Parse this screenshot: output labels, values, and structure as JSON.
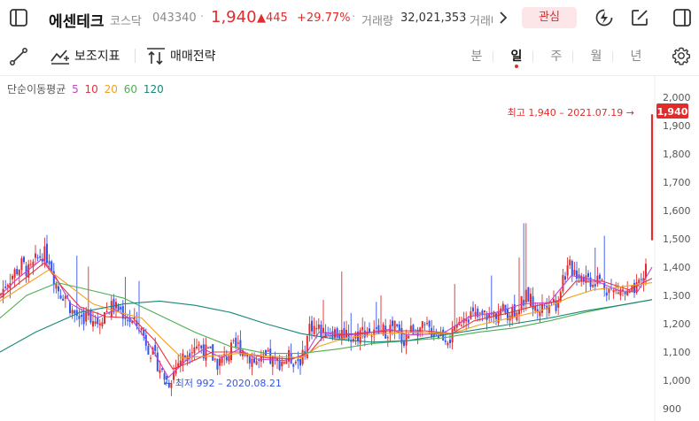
{
  "header": {
    "name": "에센테크",
    "market": "코스닥",
    "code": "043340",
    "price": "1,940",
    "change": "▲445",
    "change_pct": "+29.77%",
    "volume_label": "거래량",
    "volume": "32,021,353",
    "volume_label2": "거래대금",
    "favorite_label": "관심"
  },
  "toolbar": {
    "indicators_label": "보조지표",
    "trade_strategy_label": "매매전략",
    "periods": [
      "분",
      "일",
      "주",
      "월",
      "년"
    ],
    "active_period": "일"
  },
  "legend": {
    "title": "단순이동평균",
    "items": [
      {
        "label": "5",
        "color": "#c244c8"
      },
      {
        "label": "10",
        "color": "#e8333c"
      },
      {
        "label": "20",
        "color": "#f0a020"
      },
      {
        "label": "60",
        "color": "#4caf50"
      },
      {
        "label": "120",
        "color": "#16877a"
      }
    ]
  },
  "chart_data": {
    "type": "candlestick",
    "y_ticks": [
      "2,000",
      "1,900",
      "1,800",
      "1,700",
      "1,600",
      "1,500",
      "1,400",
      "1,300",
      "1,200",
      "1,100",
      "1,000",
      "900"
    ],
    "ylim": [
      880,
      2020
    ],
    "current_price_badge": "1,940",
    "annotations": {
      "high": "최고 1,940 – 2021.07.19 →",
      "low": "← 최저 992 – 2020.08.21"
    },
    "colors": {
      "up": "#e22b2b",
      "down": "#3355ee"
    },
    "close_path": [
      [
        0,
        1300
      ],
      [
        8,
        1350
      ],
      [
        16,
        1380
      ],
      [
        25,
        1410
      ],
      [
        33,
        1380
      ],
      [
        40,
        1420
      ],
      [
        48,
        1450
      ],
      [
        56,
        1430
      ],
      [
        62,
        1350
      ],
      [
        68,
        1310
      ],
      [
        74,
        1300
      ],
      [
        82,
        1240
      ],
      [
        90,
        1220
      ],
      [
        100,
        1230
      ],
      [
        110,
        1210
      ],
      [
        118,
        1240
      ],
      [
        126,
        1260
      ],
      [
        134,
        1250
      ],
      [
        142,
        1230
      ],
      [
        150,
        1200
      ],
      [
        158,
        1190
      ],
      [
        166,
        1130
      ],
      [
        172,
        1090
      ],
      [
        178,
        1060
      ],
      [
        184,
        1020
      ],
      [
        190,
        992
      ],
      [
        196,
        1030
      ],
      [
        202,
        1070
      ],
      [
        210,
        1090
      ],
      [
        218,
        1130
      ],
      [
        226,
        1120
      ],
      [
        232,
        1100
      ],
      [
        238,
        1090
      ],
      [
        246,
        1060
      ],
      [
        254,
        1080
      ],
      [
        262,
        1110
      ],
      [
        270,
        1120
      ],
      [
        278,
        1100
      ],
      [
        286,
        1070
      ],
      [
        294,
        1060
      ],
      [
        302,
        1080
      ],
      [
        310,
        1060
      ],
      [
        318,
        1070
      ],
      [
        326,
        1080
      ],
      [
        334,
        1070
      ],
      [
        342,
        1080
      ],
      [
        350,
        1200
      ],
      [
        358,
        1180
      ],
      [
        366,
        1170
      ],
      [
        374,
        1180
      ],
      [
        382,
        1160
      ],
      [
        390,
        1170
      ],
      [
        398,
        1150
      ],
      [
        406,
        1170
      ],
      [
        414,
        1180
      ],
      [
        422,
        1160
      ],
      [
        430,
        1170
      ],
      [
        438,
        1180
      ],
      [
        446,
        1190
      ],
      [
        454,
        1140
      ],
      [
        460,
        1160
      ],
      [
        468,
        1190
      ],
      [
        476,
        1180
      ],
      [
        484,
        1180
      ],
      [
        492,
        1170
      ],
      [
        500,
        1160
      ],
      [
        508,
        1150
      ],
      [
        516,
        1170
      ],
      [
        524,
        1240
      ],
      [
        532,
        1230
      ],
      [
        540,
        1220
      ],
      [
        548,
        1230
      ],
      [
        556,
        1230
      ],
      [
        564,
        1250
      ],
      [
        572,
        1240
      ],
      [
        580,
        1250
      ],
      [
        588,
        1270
      ],
      [
        596,
        1300
      ],
      [
        604,
        1250
      ],
      [
        612,
        1260
      ],
      [
        620,
        1290
      ],
      [
        628,
        1270
      ],
      [
        636,
        1370
      ],
      [
        644,
        1400
      ],
      [
        652,
        1380
      ],
      [
        660,
        1370
      ],
      [
        668,
        1350
      ],
      [
        676,
        1360
      ],
      [
        684,
        1330
      ],
      [
        692,
        1310
      ],
      [
        700,
        1320
      ],
      [
        708,
        1300
      ],
      [
        716,
        1310
      ],
      [
        722,
        1330
      ],
      [
        728,
        1380
      ],
      [
        732,
        1495
      ],
      [
        736,
        1940
      ]
    ],
    "ma_paths": {
      "ma5": [
        [
          0,
          1300
        ],
        [
          20,
          1360
        ],
        [
          48,
          1430
        ],
        [
          62,
          1370
        ],
        [
          80,
          1270
        ],
        [
          110,
          1220
        ],
        [
          130,
          1250
        ],
        [
          150,
          1210
        ],
        [
          170,
          1120
        ],
        [
          190,
          1010
        ],
        [
          210,
          1070
        ],
        [
          230,
          1110
        ],
        [
          250,
          1080
        ],
        [
          270,
          1110
        ],
        [
          290,
          1075
        ],
        [
          320,
          1070
        ],
        [
          345,
          1090
        ],
        [
          360,
          1170
        ],
        [
          400,
          1160
        ],
        [
          440,
          1180
        ],
        [
          460,
          1160
        ],
        [
          500,
          1165
        ],
        [
          530,
          1225
        ],
        [
          560,
          1240
        ],
        [
          590,
          1270
        ],
        [
          620,
          1275
        ],
        [
          645,
          1370
        ],
        [
          670,
          1355
        ],
        [
          700,
          1315
        ],
        [
          720,
          1315
        ],
        [
          736,
          1400
        ]
      ],
      "ma10": [
        [
          0,
          1290
        ],
        [
          20,
          1340
        ],
        [
          50,
          1415
        ],
        [
          70,
          1330
        ],
        [
          90,
          1260
        ],
        [
          120,
          1225
        ],
        [
          150,
          1220
        ],
        [
          175,
          1140
        ],
        [
          195,
          1040
        ],
        [
          215,
          1065
        ],
        [
          240,
          1100
        ],
        [
          270,
          1100
        ],
        [
          300,
          1080
        ],
        [
          330,
          1075
        ],
        [
          350,
          1100
        ],
        [
          365,
          1155
        ],
        [
          400,
          1165
        ],
        [
          440,
          1175
        ],
        [
          480,
          1175
        ],
        [
          510,
          1165
        ],
        [
          535,
          1210
        ],
        [
          570,
          1235
        ],
        [
          600,
          1260
        ],
        [
          630,
          1280
        ],
        [
          650,
          1350
        ],
        [
          680,
          1350
        ],
        [
          710,
          1320
        ],
        [
          736,
          1360
        ]
      ],
      "ma20": [
        [
          0,
          1280
        ],
        [
          25,
          1330
        ],
        [
          55,
          1390
        ],
        [
          80,
          1330
        ],
        [
          105,
          1270
        ],
        [
          135,
          1240
        ],
        [
          160,
          1220
        ],
        [
          185,
          1140
        ],
        [
          205,
          1080
        ],
        [
          235,
          1085
        ],
        [
          270,
          1095
        ],
        [
          305,
          1085
        ],
        [
          340,
          1080
        ],
        [
          360,
          1120
        ],
        [
          390,
          1150
        ],
        [
          430,
          1165
        ],
        [
          470,
          1170
        ],
        [
          510,
          1165
        ],
        [
          540,
          1195
        ],
        [
          575,
          1220
        ],
        [
          610,
          1245
        ],
        [
          640,
          1290
        ],
        [
          670,
          1320
        ],
        [
          700,
          1330
        ],
        [
          736,
          1345
        ]
      ],
      "ma60": [
        [
          0,
          1220
        ],
        [
          30,
          1300
        ],
        [
          65,
          1345
        ],
        [
          100,
          1320
        ],
        [
          140,
          1290
        ],
        [
          180,
          1230
        ],
        [
          220,
          1170
        ],
        [
          260,
          1120
        ],
        [
          300,
          1095
        ],
        [
          340,
          1095
        ],
        [
          380,
          1110
        ],
        [
          420,
          1130
        ],
        [
          460,
          1140
        ],
        [
          500,
          1150
        ],
        [
          540,
          1170
        ],
        [
          580,
          1185
        ],
        [
          620,
          1210
        ],
        [
          660,
          1240
        ],
        [
          700,
          1265
        ],
        [
          736,
          1285
        ]
      ],
      "ma120": [
        [
          0,
          1100
        ],
        [
          40,
          1170
        ],
        [
          90,
          1240
        ],
        [
          140,
          1270
        ],
        [
          180,
          1280
        ],
        [
          220,
          1265
        ],
        [
          260,
          1240
        ],
        [
          300,
          1200
        ],
        [
          340,
          1165
        ],
        [
          380,
          1145
        ],
        [
          420,
          1135
        ],
        [
          460,
          1140
        ],
        [
          500,
          1160
        ],
        [
          540,
          1180
        ],
        [
          580,
          1200
        ],
        [
          620,
          1220
        ],
        [
          660,
          1245
        ],
        [
          700,
          1265
        ],
        [
          736,
          1285
        ]
      ]
    }
  }
}
